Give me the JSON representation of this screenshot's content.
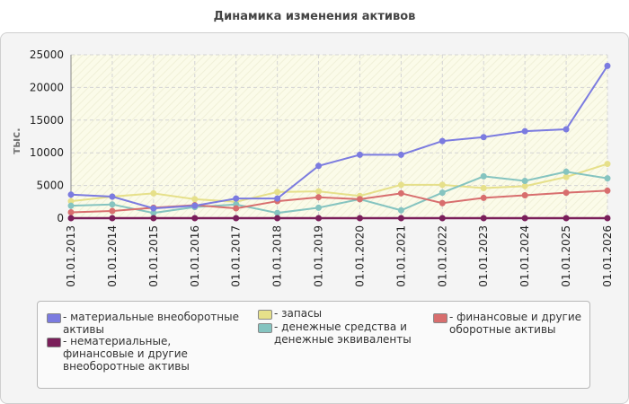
{
  "chart_data": {
    "type": "line",
    "title": "Динамика изменения активов",
    "ylabel": "тыс.",
    "xlabel": "",
    "ylim": [
      0,
      25000
    ],
    "yticks": [
      0,
      5000,
      10000,
      15000,
      20000,
      25000
    ],
    "grid": true,
    "legend_position": "bottom",
    "categories": [
      "01.01.2013",
      "01.01.2014",
      "01.01.2015",
      "01.01.2016",
      "01.01.2017",
      "01.01.2018",
      "01.01.2019",
      "01.01.2020",
      "01.01.2021",
      "01.01.2022",
      "01.01.2023",
      "01.01.2024",
      "01.01.2025",
      "01.01.2026"
    ],
    "series": [
      {
        "name": "- материальные внеоборотные активы",
        "color": "#7b7be0",
        "values": [
          3600,
          3300,
          1500,
          1900,
          3000,
          3000,
          8000,
          9700,
          9700,
          11800,
          12400,
          13300,
          13600,
          23300
        ]
      },
      {
        "name": "- нематериальные, финансовые и другие внеоборотные активы",
        "color": "#7a1f5a",
        "values": [
          0,
          0,
          0,
          0,
          0,
          0,
          0,
          0,
          0,
          0,
          0,
          0,
          0,
          0
        ]
      },
      {
        "name": "- запасы",
        "color": "#e6e08a",
        "values": [
          2600,
          3300,
          3800,
          2900,
          2500,
          4000,
          4100,
          3400,
          5100,
          5100,
          4600,
          4900,
          6300,
          8300
        ]
      },
      {
        "name": "- денежные средства и денежные эквиваленты",
        "color": "#85c4c0",
        "values": [
          1900,
          2100,
          800,
          1700,
          2100,
          800,
          1600,
          2900,
          1200,
          3900,
          6400,
          5700,
          7100,
          6100
        ]
      },
      {
        "name": "- финансовые и другие оборотные активы",
        "color": "#d86e6e",
        "values": [
          900,
          1100,
          1600,
          2000,
          1500,
          2600,
          3200,
          2900,
          3800,
          2300,
          3100,
          3500,
          3900,
          4200
        ]
      }
    ]
  }
}
